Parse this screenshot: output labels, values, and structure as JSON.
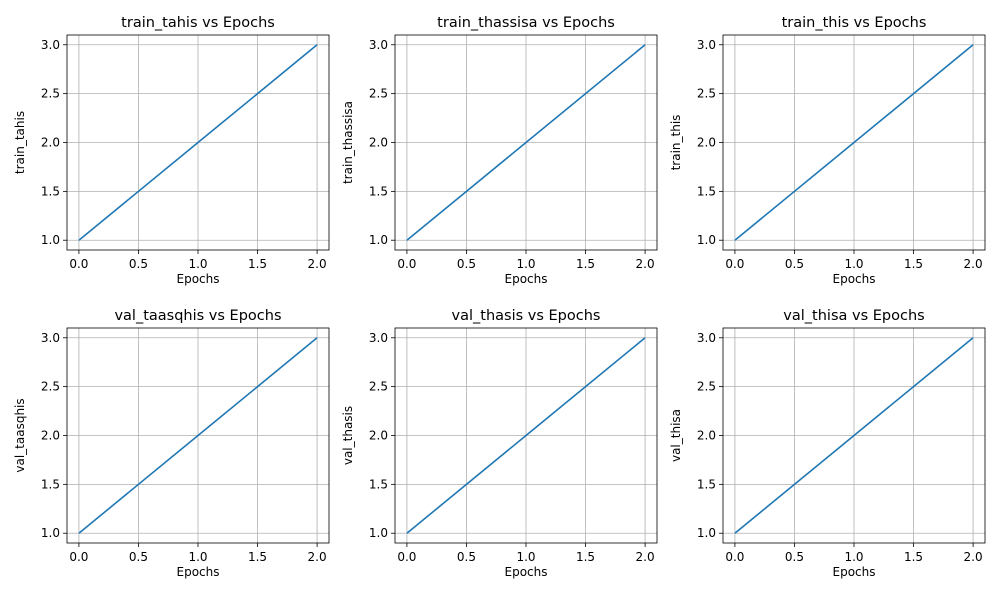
{
  "chart_data": [
    {
      "type": "line",
      "title": "train_tahis vs Epochs",
      "xlabel": "Epochs",
      "ylabel": "train_tahis",
      "x": [
        0,
        1,
        2
      ],
      "values": [
        1.0,
        2.0,
        3.0
      ],
      "xlim": [
        -0.1,
        2.1
      ],
      "ylim": [
        0.9,
        3.1
      ],
      "xticks": [
        "0.0",
        "0.5",
        "1.0",
        "1.5",
        "2.0"
      ],
      "yticks": [
        "1.0",
        "1.5",
        "2.0",
        "2.5",
        "3.0"
      ],
      "grid": true
    },
    {
      "type": "line",
      "title": "train_thassisa vs Epochs",
      "xlabel": "Epochs",
      "ylabel": "train_thassisa",
      "x": [
        0,
        1,
        2
      ],
      "values": [
        1.0,
        2.0,
        3.0
      ],
      "xlim": [
        -0.1,
        2.1
      ],
      "ylim": [
        0.9,
        3.1
      ],
      "xticks": [
        "0.0",
        "0.5",
        "1.0",
        "1.5",
        "2.0"
      ],
      "yticks": [
        "1.0",
        "1.5",
        "2.0",
        "2.5",
        "3.0"
      ],
      "grid": true
    },
    {
      "type": "line",
      "title": "train_this vs Epochs",
      "xlabel": "Epochs",
      "ylabel": "train_this",
      "x": [
        0,
        1,
        2
      ],
      "values": [
        1.0,
        2.0,
        3.0
      ],
      "xlim": [
        -0.1,
        2.1
      ],
      "ylim": [
        0.9,
        3.1
      ],
      "xticks": [
        "0.0",
        "0.5",
        "1.0",
        "1.5",
        "2.0"
      ],
      "yticks": [
        "1.0",
        "1.5",
        "2.0",
        "2.5",
        "3.0"
      ],
      "grid": true
    },
    {
      "type": "line",
      "title": "val_taasqhis vs Epochs",
      "xlabel": "Epochs",
      "ylabel": "val_taasqhis",
      "x": [
        0,
        1,
        2
      ],
      "values": [
        1.0,
        2.0,
        3.0
      ],
      "xlim": [
        -0.1,
        2.1
      ],
      "ylim": [
        0.9,
        3.1
      ],
      "xticks": [
        "0.0",
        "0.5",
        "1.0",
        "1.5",
        "2.0"
      ],
      "yticks": [
        "1.0",
        "1.5",
        "2.0",
        "2.5",
        "3.0"
      ],
      "grid": true
    },
    {
      "type": "line",
      "title": "val_thasis vs Epochs",
      "xlabel": "Epochs",
      "ylabel": "val_thasis",
      "x": [
        0,
        1,
        2
      ],
      "values": [
        1.0,
        2.0,
        3.0
      ],
      "xlim": [
        -0.1,
        2.1
      ],
      "ylim": [
        0.9,
        3.1
      ],
      "xticks": [
        "0.0",
        "0.5",
        "1.0",
        "1.5",
        "2.0"
      ],
      "yticks": [
        "1.0",
        "1.5",
        "2.0",
        "2.5",
        "3.0"
      ],
      "grid": true
    },
    {
      "type": "line",
      "title": "val_thisa vs Epochs",
      "xlabel": "Epochs",
      "ylabel": "val_thisa",
      "x": [
        0,
        1,
        2
      ],
      "values": [
        1.0,
        2.0,
        3.0
      ],
      "xlim": [
        -0.1,
        2.1
      ],
      "ylim": [
        0.9,
        3.1
      ],
      "xticks": [
        "0.0",
        "0.5",
        "1.0",
        "1.5",
        "2.0"
      ],
      "yticks": [
        "1.0",
        "1.5",
        "2.0",
        "2.5",
        "3.0"
      ],
      "grid": true
    }
  ],
  "colors": {
    "line": "#1f77b4",
    "grid": "#b0b0b0",
    "axes": "#000000"
  }
}
